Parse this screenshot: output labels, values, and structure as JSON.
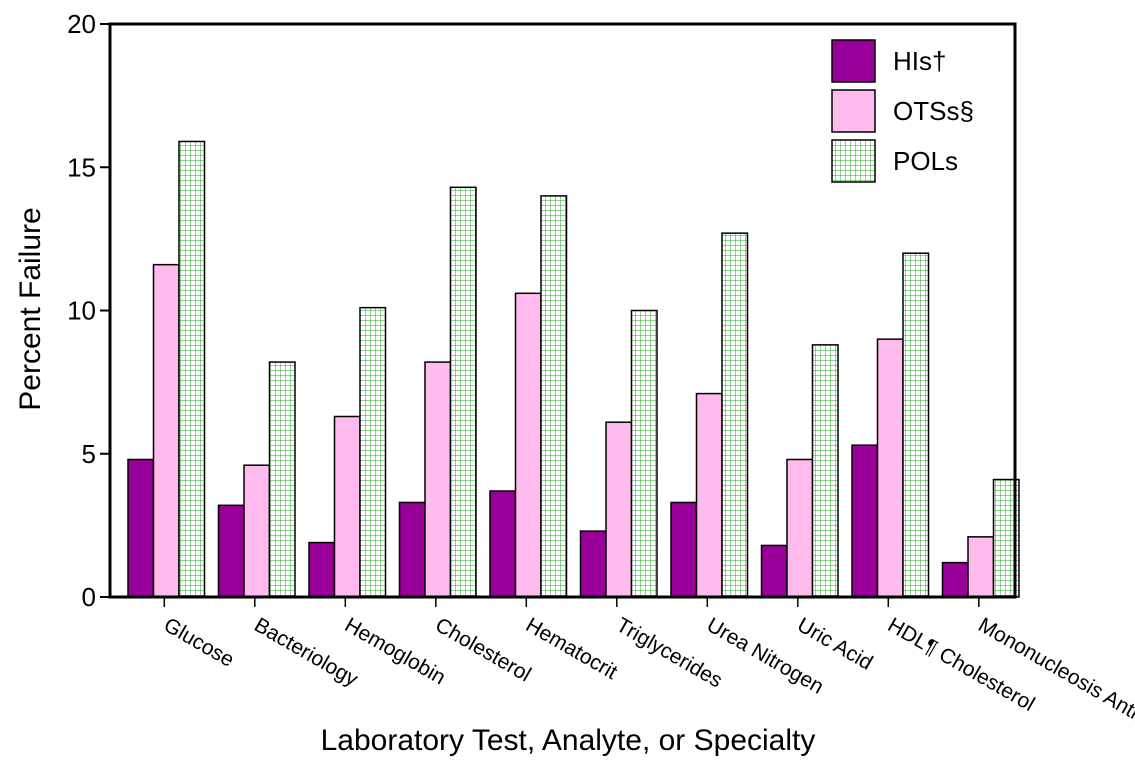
{
  "chart_data": {
    "type": "bar",
    "x_label": "Laboratory Test, Analyte, or Specialty",
    "y_label": "Percent Failure",
    "categories": [
      "Glucose",
      "Bacteriology",
      "Hemoglobin",
      "Cholesterol",
      "Hematocrit",
      "Triglycerides",
      "Urea Nitrogen",
      "Uric Acid",
      "HDL¶ Cholesterol",
      "Mononucleosis Antibodies"
    ],
    "series": [
      {
        "name": "HIs†",
        "color": "#990099",
        "values": [
          4.8,
          3.2,
          1.9,
          3.3,
          3.7,
          2.3,
          3.3,
          1.8,
          5.3,
          1.2
        ]
      },
      {
        "name": "OTSs§",
        "color": "#ffbbee",
        "values": [
          11.6,
          4.6,
          6.3,
          8.2,
          10.6,
          6.1,
          7.1,
          4.8,
          9.0,
          2.1
        ]
      },
      {
        "name": "POLs",
        "color": "#22aa22",
        "pattern": "grid",
        "values": [
          15.9,
          8.2,
          10.1,
          14.3,
          14.0,
          10.0,
          12.7,
          8.8,
          12.0,
          4.1
        ]
      }
    ],
    "ylim": [
      0,
      20
    ],
    "yticks": [
      0,
      5,
      10,
      15,
      20
    ],
    "legend": "top-right"
  }
}
